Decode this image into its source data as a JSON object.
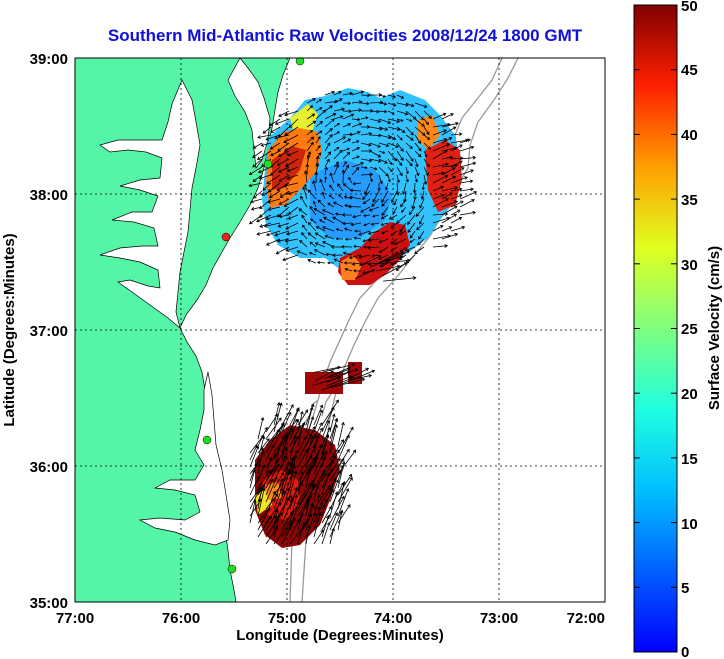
{
  "title": "Southern Mid-Atlantic Raw Velocities 2008/12/24 1800 GMT",
  "x_axis": {
    "label": "Longitude (Degrees:Minutes)",
    "ticks": [
      "77:00",
      "76:00",
      "75:00",
      "74:00",
      "73:00",
      "72:00"
    ]
  },
  "y_axis": {
    "label": "Latitude (Degrees:Minutes)",
    "ticks": [
      "39:00",
      "38:00",
      "37:00",
      "36:00",
      "35:00"
    ]
  },
  "colorbar": {
    "label": "Surface Velocity (cm/s)",
    "ticks": [
      "50",
      "45",
      "40",
      "35",
      "30",
      "25",
      "20",
      "15",
      "10",
      "5",
      "0"
    ],
    "min": 0,
    "max": 50
  },
  "map": {
    "lon_range": [
      -77,
      -72
    ],
    "lat_range": [
      35,
      39
    ],
    "land_color": "#55f5a8",
    "water_color": "#ffffff",
    "grid": "dotted",
    "bathymetry_color": "#999999"
  }
}
